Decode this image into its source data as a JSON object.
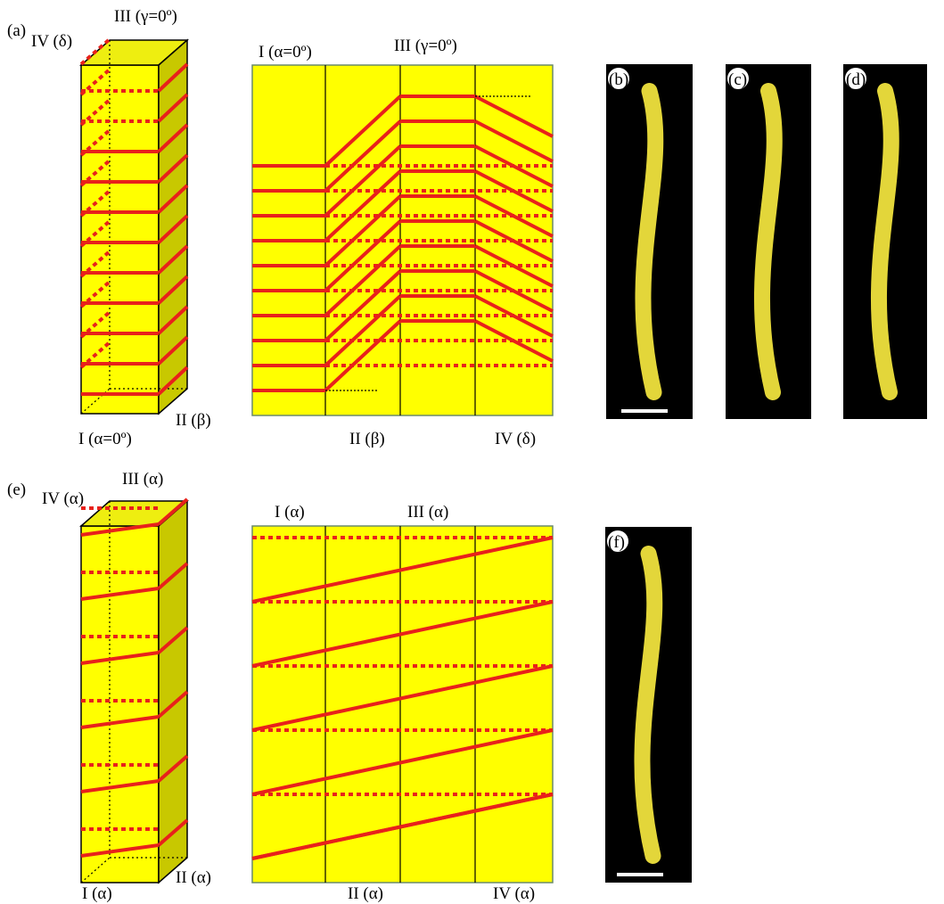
{
  "panel_a": {
    "label": "(a)",
    "box": {
      "top_left": "IV (δ)",
      "top_right": "III (γ=0º)",
      "bottom_left": "I (α=0º)",
      "bottom_right": "II (β)"
    },
    "net": {
      "top_left": "I (α=0º)",
      "top_right": "III (γ=0º)",
      "bottom_mid": "II (β)",
      "bottom_right": "IV (δ)"
    }
  },
  "photos": [
    "(b)",
    "(c)",
    "(d)"
  ],
  "panel_e": {
    "label": "(e)",
    "box": {
      "top_left": "IV (α)",
      "top_right": "III (α)",
      "bottom_left": "I (α)",
      "bottom_right": "II (α)"
    },
    "net": {
      "top_left": "I (α)",
      "top_right": "III (α)",
      "bottom_mid": "II (α)",
      "bottom_right": "IV (α)"
    }
  },
  "photo_f": "(f)"
}
